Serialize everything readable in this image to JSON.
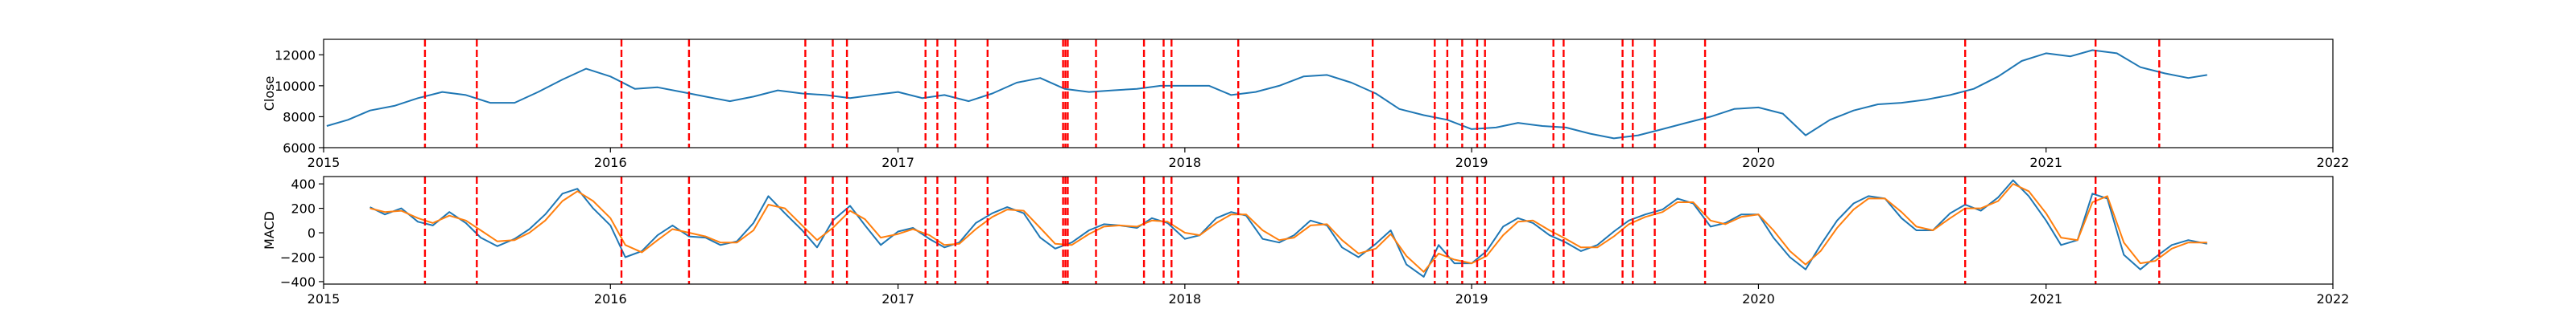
{
  "chart_data": [
    {
      "type": "line",
      "ylabel": "Close",
      "xlim": [
        "2015-01-01",
        "2022-01-01"
      ],
      "ylim": [
        6000,
        13000
      ],
      "yticks": [
        6000,
        8000,
        10000,
        12000
      ],
      "yticklabels": [
        "6000",
        "8000",
        "10000",
        "12000"
      ],
      "xticks": [
        "2015-01-01",
        "2016-01-01",
        "2017-01-01",
        "2018-01-01",
        "2019-01-01",
        "2020-01-01",
        "2021-01-01",
        "2022-01-01"
      ],
      "xticklabels": [
        "2015",
        "2016",
        "2017",
        "2018",
        "2019",
        "2020",
        "2021",
        "2022"
      ],
      "grid": false,
      "series": [
        {
          "color": "#1f77b4",
          "x": [
            "2015-01-05",
            "2015-02-01",
            "2015-03-01",
            "2015-04-01",
            "2015-05-01",
            "2015-06-01",
            "2015-07-01",
            "2015-08-01",
            "2015-09-01",
            "2015-10-01",
            "2015-11-01",
            "2015-12-01",
            "2016-01-01",
            "2016-02-01",
            "2016-03-01",
            "2016-04-01",
            "2016-05-01",
            "2016-06-01",
            "2016-07-01",
            "2016-08-01",
            "2016-09-01",
            "2016-10-01",
            "2016-11-01",
            "2016-12-01",
            "2017-01-01",
            "2017-02-01",
            "2017-03-01",
            "2017-04-01",
            "2017-05-01",
            "2017-06-01",
            "2017-07-01",
            "2017-08-01",
            "2017-09-01",
            "2017-10-01",
            "2017-11-01",
            "2017-12-01",
            "2018-01-01",
            "2018-02-01",
            "2018-03-01",
            "2018-04-01",
            "2018-05-01",
            "2018-06-01",
            "2018-07-01",
            "2018-08-01",
            "2018-09-01",
            "2018-10-01",
            "2018-11-01",
            "2018-12-01",
            "2019-01-01",
            "2019-02-01",
            "2019-03-01",
            "2019-04-01",
            "2019-05-01",
            "2019-06-01",
            "2019-07-01",
            "2019-08-01",
            "2019-09-01",
            "2019-10-01",
            "2019-11-01",
            "2019-12-01",
            "2020-01-01",
            "2020-02-01",
            "2020-03-01",
            "2020-04-01",
            "2020-05-01",
            "2020-06-01",
            "2020-07-01",
            "2020-08-01",
            "2020-09-01",
            "2020-10-01",
            "2020-11-01",
            "2020-12-01",
            "2021-01-01",
            "2021-02-01",
            "2021-03-01",
            "2021-04-01",
            "2021-05-01",
            "2021-06-01",
            "2021-07-01",
            "2021-07-25"
          ],
          "values": [
            7400,
            7800,
            8400,
            8700,
            9200,
            9600,
            9400,
            8900,
            8900,
            9600,
            10400,
            11100,
            10600,
            9800,
            9900,
            9600,
            9300,
            9000,
            9300,
            9700,
            9500,
            9400,
            9200,
            9400,
            9600,
            9200,
            9400,
            9000,
            9500,
            10200,
            10500,
            9800,
            9600,
            9700,
            9800,
            10000,
            10000,
            10000,
            9400,
            9600,
            10000,
            10600,
            10700,
            10200,
            9500,
            8500,
            8100,
            7800,
            7200,
            7300,
            7600,
            7400,
            7300,
            6900,
            6600,
            6800,
            7200,
            7600,
            8000,
            8500,
            8600,
            8200,
            6800,
            7800,
            8400,
            8800,
            8900,
            9100,
            9400,
            9800,
            10600,
            11600,
            12100,
            11900,
            12300,
            12100,
            11200,
            10800,
            10500,
            10700
          ]
        }
      ]
    },
    {
      "type": "line",
      "ylabel": "MACD",
      "xlim": [
        "2015-01-01",
        "2022-01-01"
      ],
      "ylim": [
        -420,
        460
      ],
      "yticks": [
        -400,
        -200,
        0,
        200,
        400
      ],
      "yticklabels": [
        "−400",
        "−200",
        "0",
        "200",
        "400"
      ],
      "xticks": [
        "2015-01-01",
        "2016-01-01",
        "2017-01-01",
        "2018-01-01",
        "2019-01-01",
        "2020-01-01",
        "2021-01-01",
        "2022-01-01"
      ],
      "xticklabels": [
        "2015",
        "2016",
        "2017",
        "2018",
        "2019",
        "2020",
        "2021",
        "2022"
      ],
      "grid": false,
      "series": [
        {
          "color": "#1f77b4",
          "x": [
            "2015-03-01",
            "2015-03-20",
            "2015-04-10",
            "2015-05-01",
            "2015-05-20",
            "2015-06-10",
            "2015-07-01",
            "2015-07-20",
            "2015-08-10",
            "2015-09-01",
            "2015-09-20",
            "2015-10-10",
            "2015-11-01",
            "2015-11-20",
            "2015-12-10",
            "2016-01-01",
            "2016-01-20",
            "2016-02-10",
            "2016-03-01",
            "2016-03-20",
            "2016-04-10",
            "2016-05-01",
            "2016-05-20",
            "2016-06-10",
            "2016-07-01",
            "2016-07-20",
            "2016-08-10",
            "2016-09-01",
            "2016-09-20",
            "2016-10-10",
            "2016-11-01",
            "2016-11-20",
            "2016-12-10",
            "2017-01-01",
            "2017-01-20",
            "2017-02-10",
            "2017-03-01",
            "2017-03-20",
            "2017-04-10",
            "2017-05-01",
            "2017-05-20",
            "2017-06-10",
            "2017-07-01",
            "2017-07-20",
            "2017-08-10",
            "2017-09-01",
            "2017-09-20",
            "2017-10-10",
            "2017-11-01",
            "2017-11-20",
            "2017-12-10",
            "2018-01-01",
            "2018-01-20",
            "2018-02-10",
            "2018-03-01",
            "2018-03-20",
            "2018-04-10",
            "2018-05-01",
            "2018-05-20",
            "2018-06-10",
            "2018-07-01",
            "2018-07-20",
            "2018-08-10",
            "2018-09-01",
            "2018-09-20",
            "2018-10-10",
            "2018-11-01",
            "2018-11-20",
            "2018-12-10",
            "2019-01-01",
            "2019-01-20",
            "2019-02-10",
            "2019-03-01",
            "2019-03-20",
            "2019-04-10",
            "2019-05-01",
            "2019-05-20",
            "2019-06-10",
            "2019-07-01",
            "2019-07-20",
            "2019-08-10",
            "2019-09-01",
            "2019-09-20",
            "2019-10-10",
            "2019-11-01",
            "2019-11-20",
            "2019-12-10",
            "2020-01-01",
            "2020-01-20",
            "2020-02-10",
            "2020-03-01",
            "2020-03-20",
            "2020-04-10",
            "2020-05-01",
            "2020-05-20",
            "2020-06-10",
            "2020-07-01",
            "2020-07-20",
            "2020-08-10",
            "2020-09-01",
            "2020-09-20",
            "2020-10-10",
            "2020-11-01",
            "2020-11-20",
            "2020-12-10",
            "2021-01-01",
            "2021-01-20",
            "2021-02-10",
            "2021-03-01",
            "2021-03-20",
            "2021-04-10",
            "2021-05-01",
            "2021-05-20",
            "2021-06-10",
            "2021-07-01",
            "2021-07-25"
          ],
          "values": [
            210,
            150,
            200,
            90,
            60,
            170,
            80,
            -40,
            -110,
            -50,
            30,
            150,
            320,
            360,
            200,
            60,
            -200,
            -150,
            -20,
            60,
            -30,
            -40,
            -100,
            -70,
            80,
            300,
            160,
            20,
            -120,
            100,
            220,
            60,
            -100,
            10,
            40,
            -50,
            -120,
            -80,
            80,
            160,
            210,
            160,
            -40,
            -130,
            -80,
            20,
            70,
            60,
            40,
            120,
            80,
            -50,
            -20,
            120,
            170,
            140,
            -50,
            -80,
            -20,
            100,
            60,
            -120,
            -200,
            -90,
            20,
            -260,
            -360,
            -100,
            -250,
            -250,
            -150,
            50,
            120,
            80,
            -20,
            -80,
            -150,
            -100,
            10,
            100,
            150,
            190,
            280,
            240,
            50,
            80,
            150,
            150,
            -40,
            -200,
            -300,
            -100,
            100,
            240,
            300,
            280,
            120,
            20,
            20,
            160,
            230,
            180,
            290,
            430,
            300,
            100,
            -100,
            -60,
            320,
            280,
            -180,
            -300,
            -200,
            -100,
            -60,
            -90
          ]
        },
        {
          "color": "#ff7f0e",
          "x": [
            "2015-03-01",
            "2015-03-20",
            "2015-04-10",
            "2015-05-01",
            "2015-05-20",
            "2015-06-10",
            "2015-07-01",
            "2015-07-20",
            "2015-08-10",
            "2015-09-01",
            "2015-09-20",
            "2015-10-10",
            "2015-11-01",
            "2015-11-20",
            "2015-12-10",
            "2016-01-01",
            "2016-01-20",
            "2016-02-10",
            "2016-03-01",
            "2016-03-20",
            "2016-04-10",
            "2016-05-01",
            "2016-05-20",
            "2016-06-10",
            "2016-07-01",
            "2016-07-20",
            "2016-08-10",
            "2016-09-01",
            "2016-09-20",
            "2016-10-10",
            "2016-11-01",
            "2016-11-20",
            "2016-12-10",
            "2017-01-01",
            "2017-01-20",
            "2017-02-10",
            "2017-03-01",
            "2017-03-20",
            "2017-04-10",
            "2017-05-01",
            "2017-05-20",
            "2017-06-10",
            "2017-07-01",
            "2017-07-20",
            "2017-08-10",
            "2017-09-01",
            "2017-09-20",
            "2017-10-10",
            "2017-11-01",
            "2017-11-20",
            "2017-12-10",
            "2018-01-01",
            "2018-01-20",
            "2018-02-10",
            "2018-03-01",
            "2018-03-20",
            "2018-04-10",
            "2018-05-01",
            "2018-05-20",
            "2018-06-10",
            "2018-07-01",
            "2018-07-20",
            "2018-08-10",
            "2018-09-01",
            "2018-09-20",
            "2018-10-10",
            "2018-11-01",
            "2018-11-20",
            "2018-12-10",
            "2019-01-01",
            "2019-01-20",
            "2019-02-10",
            "2019-03-01",
            "2019-03-20",
            "2019-04-10",
            "2019-05-01",
            "2019-05-20",
            "2019-06-10",
            "2019-07-01",
            "2019-07-20",
            "2019-08-10",
            "2019-09-01",
            "2019-09-20",
            "2019-10-10",
            "2019-11-01",
            "2019-11-20",
            "2019-12-10",
            "2020-01-01",
            "2020-01-20",
            "2020-02-10",
            "2020-03-01",
            "2020-03-20",
            "2020-04-10",
            "2020-05-01",
            "2020-05-20",
            "2020-06-10",
            "2020-07-01",
            "2020-07-20",
            "2020-08-10",
            "2020-09-01",
            "2020-09-20",
            "2020-10-10",
            "2020-11-01",
            "2020-11-20",
            "2020-12-10",
            "2021-01-01",
            "2021-01-20",
            "2021-02-10",
            "2021-03-01",
            "2021-03-20",
            "2021-04-10",
            "2021-05-01",
            "2021-05-20",
            "2021-06-10",
            "2021-07-01",
            "2021-07-25"
          ],
          "values": [
            200,
            170,
            180,
            120,
            80,
            140,
            100,
            20,
            -70,
            -60,
            0,
            100,
            260,
            340,
            260,
            120,
            -100,
            -160,
            -60,
            30,
            0,
            -30,
            -80,
            -80,
            20,
            230,
            200,
            60,
            -60,
            40,
            180,
            110,
            -40,
            -10,
            30,
            -20,
            -100,
            -90,
            30,
            130,
            190,
            180,
            40,
            -90,
            -100,
            -10,
            50,
            60,
            50,
            100,
            90,
            0,
            -20,
            80,
            150,
            150,
            20,
            -60,
            -40,
            60,
            70,
            -60,
            -170,
            -130,
            -10,
            -190,
            -320,
            -170,
            -220,
            -250,
            -190,
            -20,
            90,
            100,
            20,
            -50,
            -120,
            -120,
            -30,
            70,
            130,
            170,
            250,
            250,
            100,
            70,
            130,
            150,
            20,
            -150,
            -260,
            -150,
            40,
            190,
            280,
            280,
            170,
            50,
            20,
            120,
            200,
            200,
            260,
            400,
            340,
            160,
            -40,
            -60,
            250,
            300,
            -80,
            -250,
            -230,
            -130,
            -80,
            -80
          ]
        }
      ]
    }
  ],
  "event_markers": {
    "color": "#ff0000",
    "style": "dashed",
    "dates": [
      "2015-05-10",
      "2015-07-15",
      "2016-01-15",
      "2016-04-10",
      "2016-09-05",
      "2016-10-10",
      "2016-10-28",
      "2017-02-05",
      "2017-02-20",
      "2017-03-15",
      "2017-04-25",
      "2017-07-30",
      "2017-08-02",
      "2017-08-05",
      "2017-09-10",
      "2017-11-10",
      "2017-12-05",
      "2017-12-15",
      "2018-03-10",
      "2018-08-28",
      "2018-11-15",
      "2018-12-01",
      "2018-12-20",
      "2019-01-08",
      "2019-01-18",
      "2019-04-15",
      "2019-04-28",
      "2019-07-12",
      "2019-07-25",
      "2019-08-22",
      "2019-10-25",
      "2020-09-20",
      "2021-03-05",
      "2021-05-25"
    ]
  }
}
